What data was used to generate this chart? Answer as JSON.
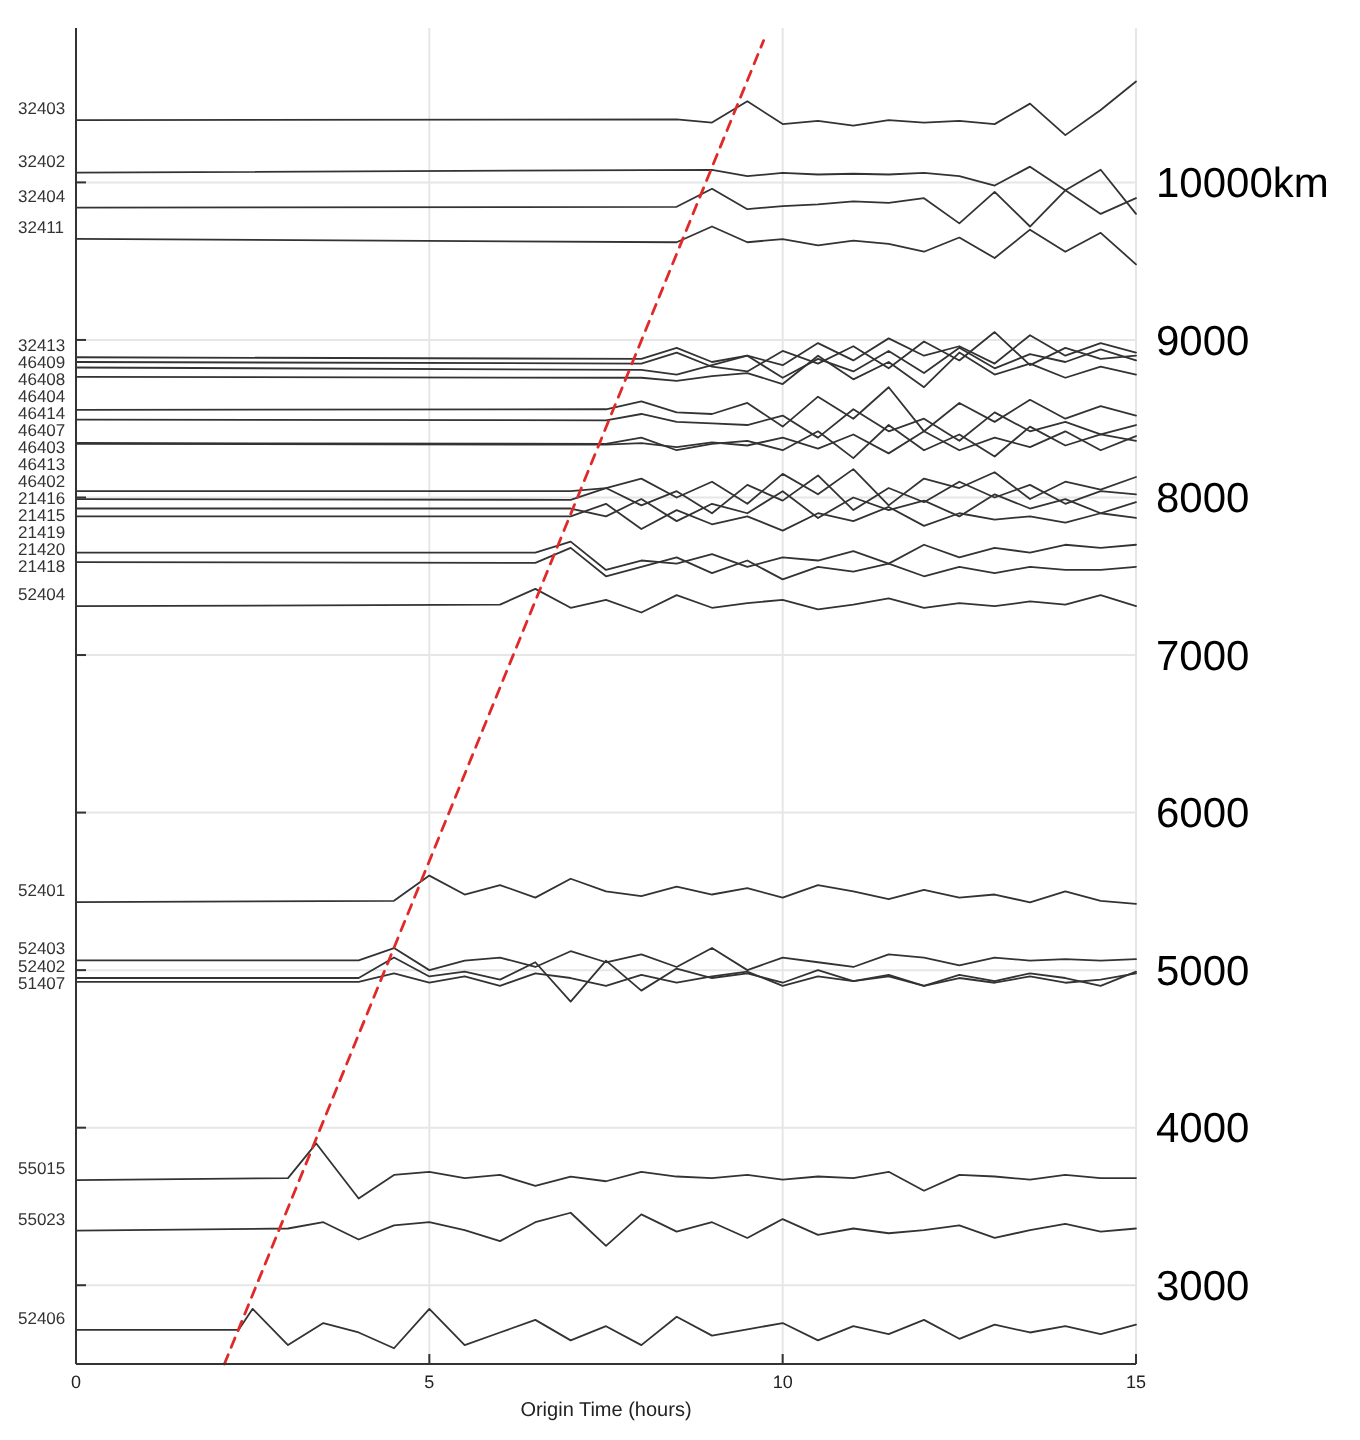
{
  "chart_data": {
    "type": "line",
    "xlabel": "Origin Time (hours)",
    "xlim": [
      0,
      15
    ],
    "xticks": [
      0,
      5,
      10,
      15
    ],
    "ylim": [
      2500,
      10980
    ],
    "yticks": [
      {
        "value": 3000,
        "label": "3000"
      },
      {
        "value": 4000,
        "label": "4000"
      },
      {
        "value": 5000,
        "label": "5000"
      },
      {
        "value": 6000,
        "label": "6000"
      },
      {
        "value": 7000,
        "label": "7000"
      },
      {
        "value": 8000,
        "label": "8000"
      },
      {
        "value": 9000,
        "label": "9000"
      },
      {
        "value": 10000,
        "label": "10000km"
      }
    ],
    "grid": true,
    "legend": "left",
    "series": [
      {
        "name": "32403",
        "color": "#333333",
        "x": [
          0,
          8.5,
          9,
          9.5,
          10,
          10.5,
          11,
          11.5,
          12,
          12.5,
          13,
          13.5,
          14,
          14.5,
          15
        ],
        "values": [
          10395,
          10400,
          10380,
          10515,
          10370,
          10390,
          10360,
          10395,
          10380,
          10390,
          10370,
          10500,
          10300,
          10460,
          10640
        ]
      },
      {
        "name": "32402",
        "color": "#333333",
        "x": [
          0,
          9,
          9.5,
          10,
          10.5,
          11,
          11.5,
          12,
          12.5,
          13,
          13.5,
          14,
          14.5,
          15
        ],
        "values": [
          10062,
          10080,
          10040,
          10060,
          10050,
          10055,
          10050,
          10060,
          10040,
          9980,
          10100,
          9950,
          10080,
          9800
        ]
      },
      {
        "name": "32404",
        "color": "#333333",
        "x": [
          0,
          8.5,
          9,
          9.5,
          10,
          10.5,
          11,
          11.5,
          12,
          12.5,
          13,
          13.5,
          14,
          14.5,
          15
        ],
        "values": [
          9840,
          9845,
          9960,
          9830,
          9850,
          9860,
          9880,
          9870,
          9900,
          9740,
          9940,
          9720,
          9950,
          9800,
          9900
        ]
      },
      {
        "name": "32411",
        "color": "#333333",
        "x": [
          0,
          8.5,
          9,
          9.5,
          10,
          10.5,
          11,
          11.5,
          12,
          12.5,
          13,
          13.5,
          14,
          14.5,
          15
        ],
        "values": [
          9642,
          9620,
          9720,
          9620,
          9640,
          9600,
          9630,
          9610,
          9560,
          9650,
          9520,
          9700,
          9560,
          9680,
          9480
        ]
      },
      {
        "name": "32413",
        "color": "#333333",
        "x": [
          0,
          8,
          8.5,
          9,
          9.5,
          10,
          10.5,
          11,
          11.5,
          12,
          12.5,
          13,
          13.5,
          14,
          14.5,
          15
        ],
        "values": [
          8890,
          8880,
          8950,
          8860,
          8900,
          8840,
          8980,
          8870,
          9010,
          8900,
          8960,
          8850,
          9030,
          8900,
          8980,
          8920
        ]
      },
      {
        "name": "46409",
        "color": "#333333",
        "x": [
          0,
          8,
          8.5,
          9,
          9.5,
          10,
          10.5,
          11,
          11.5,
          12,
          12.5,
          13,
          13.5,
          14,
          14.5,
          15
        ],
        "values": [
          8860,
          8850,
          8920,
          8830,
          8800,
          8930,
          8850,
          8960,
          8820,
          8990,
          8870,
          9050,
          8840,
          8950,
          8880,
          8900
        ]
      },
      {
        "name": "46408",
        "color": "#333333",
        "x": [
          0,
          8,
          8.5,
          9,
          9.5,
          10,
          10.5,
          11,
          11.5,
          12,
          12.5,
          13,
          13.5,
          14,
          14.5,
          15
        ],
        "values": [
          8825,
          8810,
          8780,
          8840,
          8900,
          8760,
          8880,
          8800,
          8930,
          8790,
          8950,
          8820,
          8910,
          8860,
          8940,
          8870
        ]
      },
      {
        "name": "46404",
        "color": "#333333",
        "x": [
          0,
          8,
          8.5,
          9,
          9.5,
          10,
          10.5,
          11,
          11.5,
          12,
          12.5,
          13,
          13.5,
          14,
          14.5,
          15
        ],
        "values": [
          8765,
          8760,
          8740,
          8770,
          8790,
          8720,
          8900,
          8750,
          8860,
          8700,
          8920,
          8780,
          8850,
          8760,
          8830,
          8780
        ]
      },
      {
        "name": "46414",
        "color": "#333333",
        "x": [
          0,
          7.5,
          8,
          8.5,
          9,
          9.5,
          10,
          10.5,
          11,
          11.5,
          12,
          12.5,
          13,
          13.5,
          14,
          14.5,
          15
        ],
        "values": [
          8556,
          8560,
          8610,
          8540,
          8530,
          8600,
          8450,
          8640,
          8500,
          8700,
          8420,
          8600,
          8480,
          8620,
          8500,
          8580,
          8520
        ]
      },
      {
        "name": "46407",
        "color": "#333333",
        "x": [
          0,
          7.5,
          8,
          8.5,
          9,
          9.5,
          10,
          10.5,
          11,
          11.5,
          12,
          12.5,
          13,
          13.5,
          14,
          14.5,
          15
        ],
        "values": [
          8494,
          8490,
          8530,
          8480,
          8470,
          8460,
          8520,
          8380,
          8560,
          8420,
          8500,
          8360,
          8540,
          8420,
          8480,
          8400,
          8460
        ]
      },
      {
        "name": "46403",
        "color": "#333333",
        "x": [
          0,
          7.5,
          8,
          8.5,
          9,
          9.5,
          10,
          10.5,
          11,
          11.5,
          12,
          12.5,
          13,
          13.5,
          14,
          14.5,
          15
        ],
        "values": [
          8346,
          8340,
          8380,
          8300,
          8340,
          8360,
          8300,
          8420,
          8250,
          8460,
          8300,
          8400,
          8260,
          8450,
          8330,
          8400,
          8360
        ]
      },
      {
        "name": "46413",
        "color": "#333333",
        "x": [
          0,
          7.5,
          8,
          8.5,
          9,
          9.5,
          10,
          10.5,
          11,
          11.5,
          12,
          12.5,
          13,
          13.5,
          14,
          14.5,
          15
        ],
        "values": [
          8340,
          8335,
          8345,
          8320,
          8350,
          8330,
          8380,
          8310,
          8400,
          8280,
          8420,
          8300,
          8380,
          8320,
          8420,
          8300,
          8390
        ]
      },
      {
        "name": "46402",
        "color": "#333333",
        "x": [
          0,
          7,
          7.5,
          8,
          8.5,
          9,
          9.5,
          10,
          10.5,
          11,
          11.5,
          12,
          12.5,
          13,
          13.5,
          14,
          14.5,
          15
        ],
        "values": [
          8040,
          8040,
          8060,
          8120,
          8000,
          8100,
          7960,
          8150,
          8020,
          8180,
          7950,
          8120,
          8060,
          8160,
          7990,
          8100,
          8050,
          8130
        ]
      },
      {
        "name": "21416",
        "color": "#333333",
        "x": [
          0,
          7,
          7.5,
          8,
          8.5,
          9,
          9.5,
          10,
          10.5,
          11,
          11.5,
          12,
          12.5,
          13,
          13.5,
          14,
          14.5,
          15
        ],
        "values": [
          7990,
          7985,
          8060,
          7950,
          8040,
          7900,
          8080,
          7980,
          8140,
          7920,
          8060,
          7970,
          8100,
          8000,
          8080,
          7960,
          8040,
          8020
        ]
      },
      {
        "name": "21415",
        "color": "#333333",
        "x": [
          0,
          7,
          7.5,
          8,
          8.5,
          9,
          9.5,
          10,
          10.5,
          11,
          11.5,
          12,
          12.5,
          13,
          13.5,
          14,
          14.5,
          15
        ],
        "values": [
          7930,
          7930,
          7880,
          7990,
          7850,
          7960,
          7900,
          8040,
          7870,
          8000,
          7920,
          7980,
          7880,
          8020,
          7930,
          7990,
          7900,
          7970
        ]
      },
      {
        "name": "21419",
        "color": "#333333",
        "x": [
          0,
          7,
          7.5,
          8,
          8.5,
          9,
          9.5,
          10,
          10.5,
          11,
          11.5,
          12,
          12.5,
          13,
          13.5,
          14,
          14.5,
          15
        ],
        "values": [
          7880,
          7880,
          7960,
          7800,
          7920,
          7830,
          7880,
          7790,
          7900,
          7850,
          7940,
          7820,
          7900,
          7860,
          7880,
          7840,
          7900,
          7870
        ]
      },
      {
        "name": "21420",
        "color": "#333333",
        "x": [
          0,
          6.5,
          7,
          7.5,
          8,
          8.5,
          9,
          9.5,
          10,
          10.5,
          11,
          11.5,
          12,
          12.5,
          13,
          13.5,
          14,
          14.5,
          15
        ],
        "values": [
          7650,
          7650,
          7720,
          7540,
          7600,
          7580,
          7640,
          7560,
          7620,
          7600,
          7660,
          7580,
          7700,
          7620,
          7680,
          7650,
          7700,
          7680,
          7700
        ]
      },
      {
        "name": "21418",
        "color": "#333333",
        "x": [
          0,
          6.5,
          7,
          7.5,
          8,
          8.5,
          9,
          9.5,
          10,
          10.5,
          11,
          11.5,
          12,
          12.5,
          13,
          13.5,
          14,
          14.5,
          15
        ],
        "values": [
          7590,
          7585,
          7680,
          7500,
          7560,
          7620,
          7520,
          7600,
          7480,
          7560,
          7530,
          7580,
          7500,
          7560,
          7520,
          7560,
          7540,
          7540,
          7560
        ]
      },
      {
        "name": "52404",
        "color": "#333333",
        "x": [
          0,
          6,
          6.5,
          7,
          7.5,
          8,
          8.5,
          9,
          9.5,
          10,
          10.5,
          11,
          11.5,
          12,
          12.5,
          13,
          13.5,
          14,
          14.5,
          15
        ],
        "values": [
          7310,
          7320,
          7420,
          7300,
          7350,
          7270,
          7380,
          7300,
          7330,
          7350,
          7290,
          7320,
          7360,
          7300,
          7330,
          7310,
          7340,
          7320,
          7380,
          7310
        ]
      },
      {
        "name": "52401",
        "color": "#333333",
        "x": [
          0,
          4.5,
          5,
          5.5,
          6,
          6.5,
          7,
          7.5,
          8,
          8.5,
          9,
          9.5,
          10,
          10.5,
          11,
          11.5,
          12,
          12.5,
          13,
          13.5,
          14,
          14.5,
          15
        ],
        "values": [
          5432,
          5440,
          5600,
          5480,
          5540,
          5460,
          5580,
          5500,
          5470,
          5530,
          5480,
          5520,
          5460,
          5540,
          5500,
          5450,
          5510,
          5460,
          5480,
          5430,
          5500,
          5440,
          5420
        ]
      },
      {
        "name": "52403",
        "color": "#333333",
        "x": [
          0,
          4,
          4.5,
          5,
          5.5,
          6,
          6.5,
          7,
          7.5,
          8,
          8.5,
          9,
          9.5,
          10,
          10.5,
          11,
          11.5,
          12,
          12.5,
          13,
          13.5,
          14,
          14.5,
          15
        ],
        "values": [
          5062,
          5062,
          5140,
          5000,
          5060,
          5080,
          5020,
          5120,
          5050,
          5100,
          5020,
          5140,
          5000,
          5080,
          5050,
          5020,
          5100,
          5080,
          5030,
          5080,
          5060,
          5070,
          5060,
          5070
        ]
      },
      {
        "name": "52402",
        "color": "#333333",
        "x": [
          0,
          4,
          4.5,
          5,
          5.5,
          6,
          6.5,
          7,
          7.5,
          8,
          8.5,
          9,
          9.5,
          10,
          10.5,
          11,
          11.5,
          12,
          12.5,
          13,
          13.5,
          14,
          14.5,
          15
        ],
        "values": [
          4950,
          4950,
          5080,
          4960,
          4990,
          4940,
          5050,
          4800,
          5060,
          4870,
          5010,
          4950,
          4980,
          4920,
          5000,
          4930,
          4960,
          4900,
          4970,
          4930,
          4980,
          4950,
          4900,
          4990
        ]
      },
      {
        "name": "51407",
        "color": "#333333",
        "x": [
          0,
          4,
          4.5,
          5,
          5.5,
          6,
          6.5,
          7,
          7.5,
          8,
          8.5,
          9,
          9.5,
          10,
          10.5,
          11,
          11.5,
          12,
          12.5,
          13,
          13.5,
          14,
          14.5,
          15
        ],
        "values": [
          4926,
          4926,
          4980,
          4920,
          4960,
          4900,
          4980,
          4950,
          4900,
          4970,
          4920,
          4960,
          4990,
          4900,
          4960,
          4930,
          4970,
          4900,
          4950,
          4920,
          4960,
          4920,
          4940,
          4980
        ]
      },
      {
        "name": "55015",
        "color": "#333333",
        "x": [
          0,
          3,
          3.4,
          4,
          4.5,
          5,
          5.5,
          6,
          6.5,
          7,
          7.5,
          8,
          8.5,
          9,
          9.5,
          10,
          10.5,
          11,
          11.5,
          12,
          12.5,
          13,
          13.5,
          14,
          14.5,
          15
        ],
        "values": [
          3667,
          3680,
          3900,
          3550,
          3700,
          3720,
          3680,
          3700,
          3630,
          3690,
          3660,
          3720,
          3690,
          3680,
          3700,
          3670,
          3690,
          3680,
          3720,
          3600,
          3700,
          3690,
          3670,
          3700,
          3680,
          3680
        ]
      },
      {
        "name": "55023",
        "color": "#333333",
        "x": [
          0,
          3,
          3.5,
          4,
          4.5,
          5,
          5.5,
          6,
          6.5,
          7,
          7.5,
          8,
          8.5,
          9,
          9.5,
          10,
          10.5,
          11,
          11.5,
          12,
          12.5,
          13,
          13.5,
          14,
          14.5,
          15
        ],
        "values": [
          3346,
          3360,
          3400,
          3290,
          3380,
          3400,
          3350,
          3280,
          3400,
          3460,
          3250,
          3450,
          3340,
          3400,
          3300,
          3420,
          3320,
          3360,
          3330,
          3350,
          3380,
          3300,
          3350,
          3390,
          3340,
          3360
        ]
      },
      {
        "name": "52406",
        "color": "#333333",
        "x": [
          0,
          2.3,
          2.5,
          3,
          3.5,
          4,
          4.5,
          5,
          5.5,
          6,
          6.5,
          7,
          7.5,
          8,
          8.5,
          9,
          9.5,
          10,
          10.5,
          11,
          11.5,
          12,
          12.5,
          13,
          13.5,
          14,
          14.5,
          15
        ],
        "values": [
          2716,
          2716,
          2850,
          2620,
          2760,
          2700,
          2600,
          2850,
          2620,
          2700,
          2780,
          2650,
          2740,
          2620,
          2800,
          2680,
          2720,
          2760,
          2650,
          2740,
          2690,
          2780,
          2660,
          2750,
          2700,
          2740,
          2690,
          2750
        ]
      },
      {
        "color": "#e02a2a",
        "line_style": "dashed",
        "x": [
          2.1,
          9.73
        ],
        "values": [
          2500,
          10900
        ]
      }
    ]
  }
}
